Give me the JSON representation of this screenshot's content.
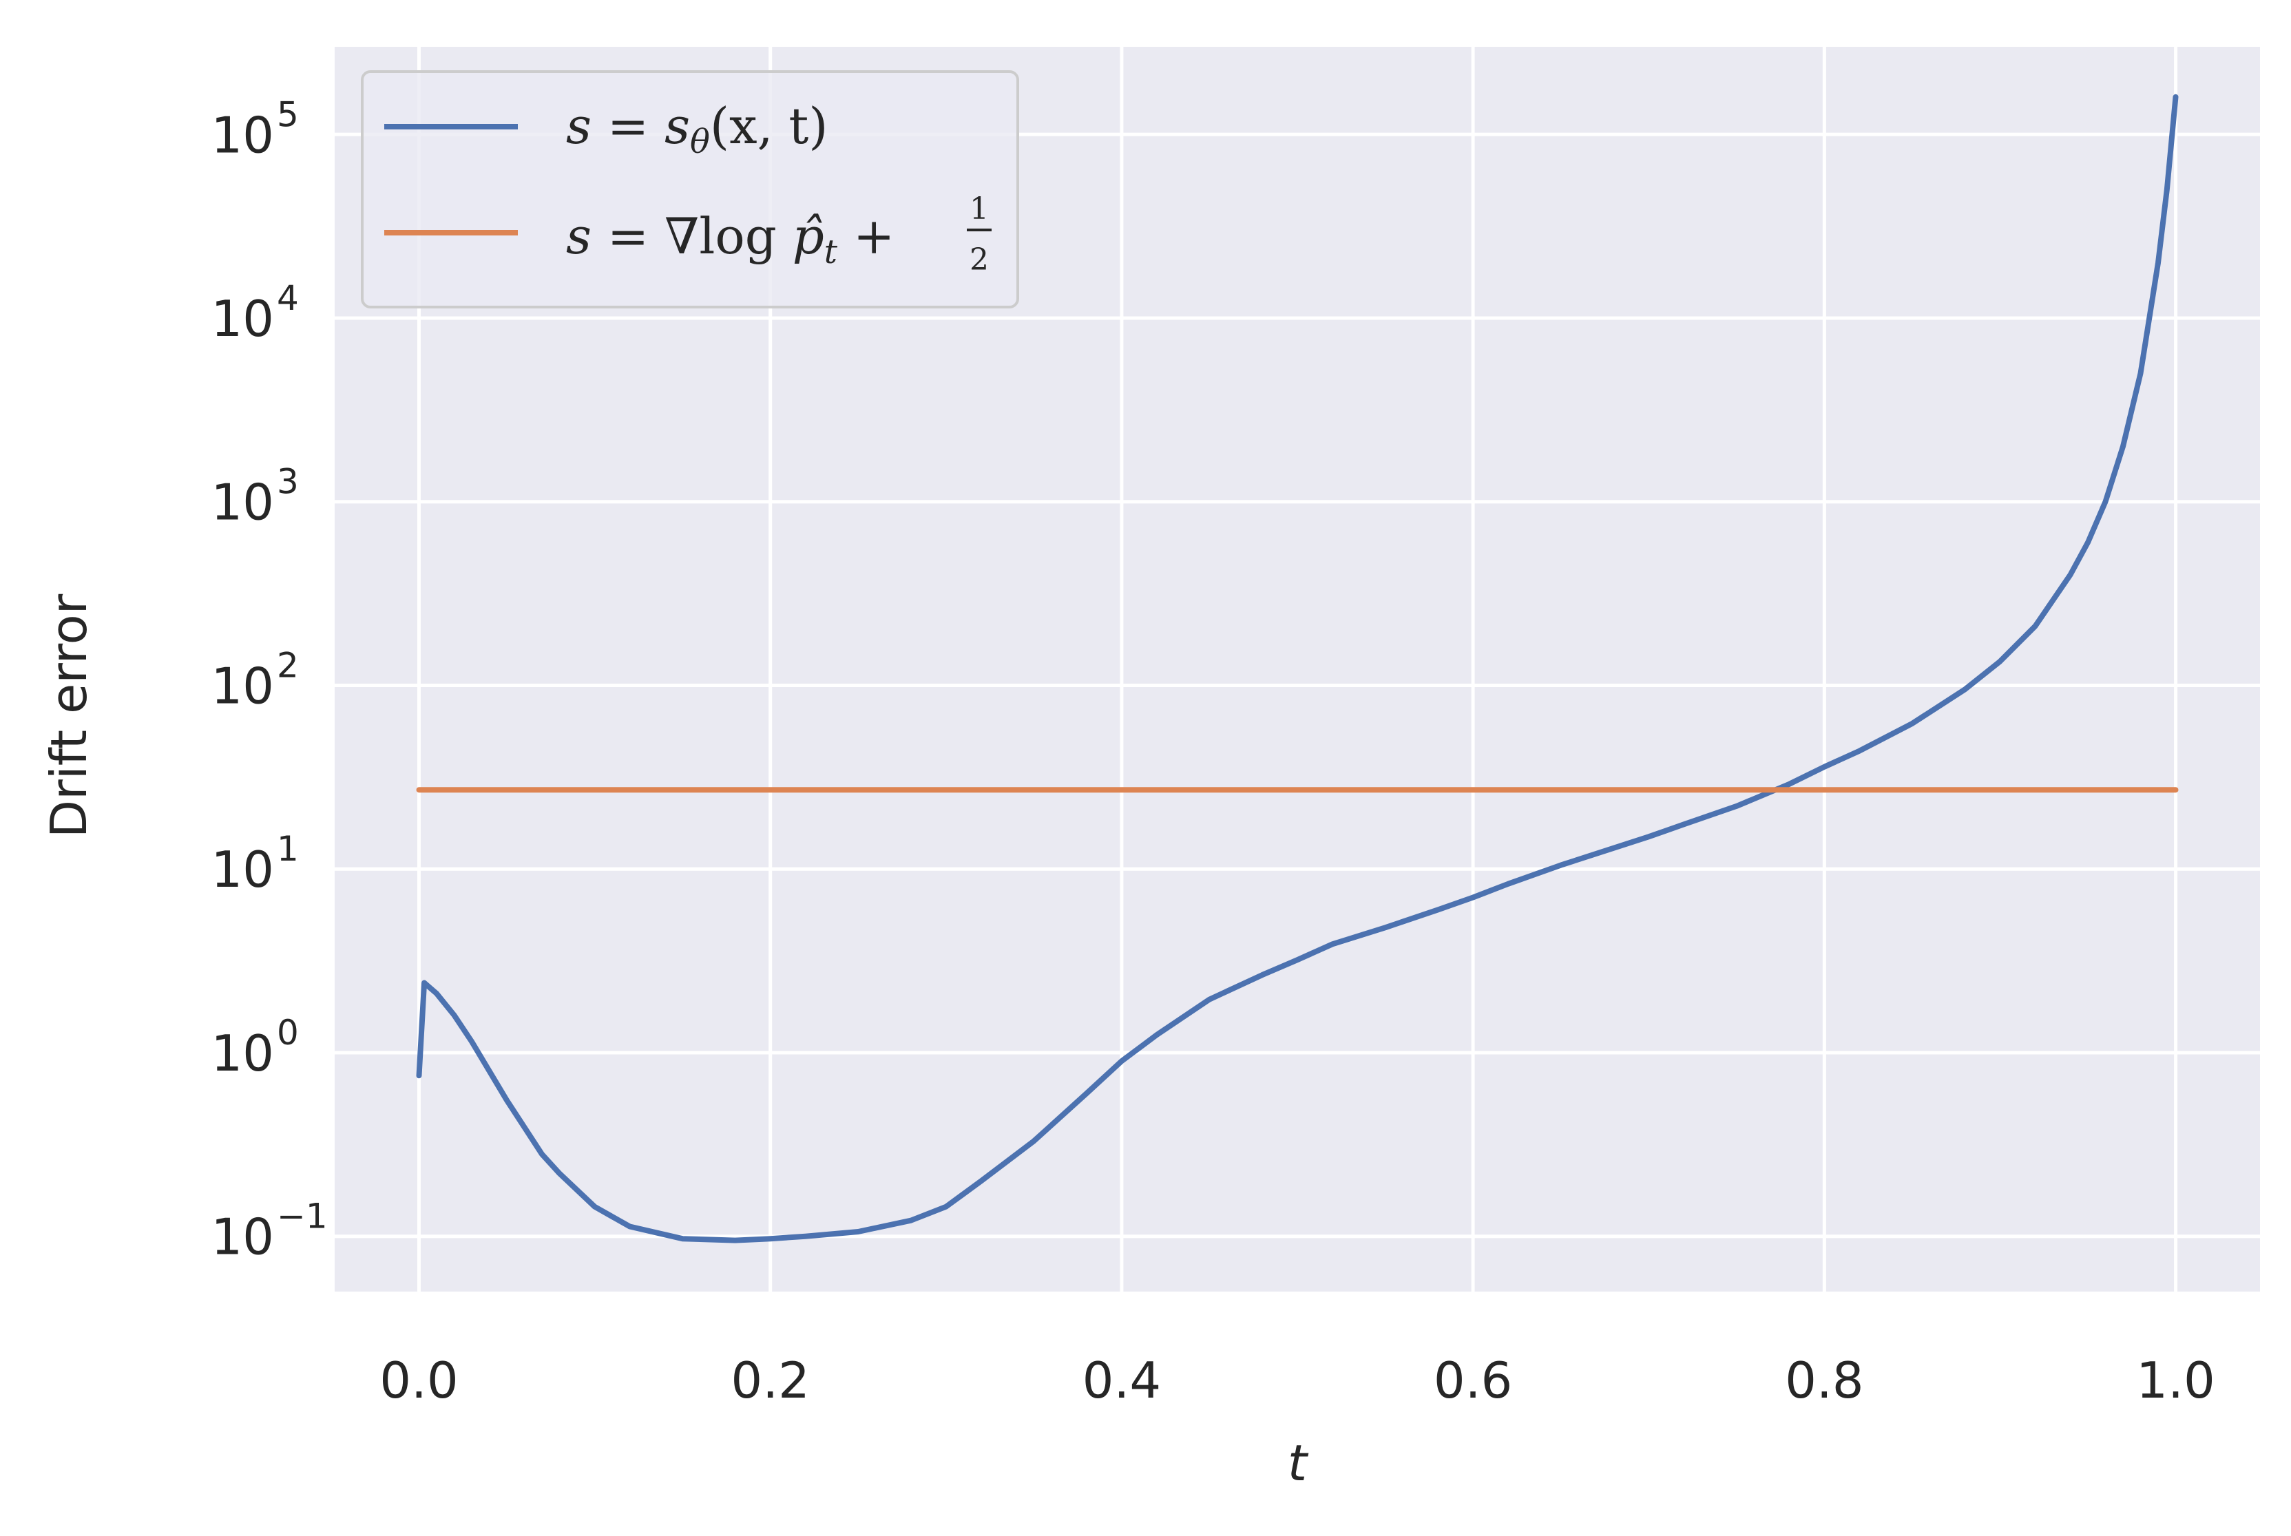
{
  "chart_data": {
    "type": "line",
    "xlabel": "t",
    "ylabel": "Drift error",
    "xlim": [
      -0.048,
      1.048
    ],
    "ylim": [
      0.05,
      300000
    ],
    "yscale": "log",
    "grid": true,
    "legend_position": "top-left",
    "x_ticks": [
      "0.0",
      "0.2",
      "0.4",
      "0.6",
      "0.8",
      "1.0"
    ],
    "y_ticks": [
      {
        "value": 0.1,
        "base": "10",
        "exp": "−1"
      },
      {
        "value": 1,
        "base": "10",
        "exp": "0"
      },
      {
        "value": 10,
        "base": "10",
        "exp": "1"
      },
      {
        "value": 100,
        "base": "10",
        "exp": "2"
      },
      {
        "value": 1000,
        "base": "10",
        "exp": "3"
      },
      {
        "value": 10000,
        "base": "10",
        "exp": "4"
      },
      {
        "value": 100000,
        "base": "10",
        "exp": "5"
      }
    ],
    "series": [
      {
        "name": "s = s_θ(x, t)",
        "color": "#4c72b0",
        "x": [
          0.0,
          0.003,
          0.01,
          0.02,
          0.03,
          0.05,
          0.07,
          0.08,
          0.1,
          0.12,
          0.15,
          0.18,
          0.2,
          0.22,
          0.25,
          0.28,
          0.3,
          0.32,
          0.35,
          0.38,
          0.4,
          0.42,
          0.45,
          0.48,
          0.5,
          0.52,
          0.55,
          0.58,
          0.6,
          0.62,
          0.65,
          0.68,
          0.7,
          0.72,
          0.75,
          0.78,
          0.8,
          0.82,
          0.85,
          0.88,
          0.9,
          0.92,
          0.94,
          0.95,
          0.96,
          0.97,
          0.98,
          0.99,
          0.995,
          1.0
        ],
        "y": [
          0.75,
          2.4,
          2.1,
          1.6,
          1.15,
          0.55,
          0.28,
          0.22,
          0.145,
          0.113,
          0.097,
          0.095,
          0.097,
          0.1,
          0.106,
          0.122,
          0.145,
          0.2,
          0.33,
          0.6,
          0.9,
          1.25,
          1.95,
          2.65,
          3.2,
          3.9,
          4.8,
          6.0,
          7.0,
          8.3,
          10.5,
          13.0,
          15.0,
          17.5,
          22.0,
          29.0,
          36.0,
          44.0,
          62.0,
          95.0,
          135.0,
          210.0,
          400.0,
          600.0,
          1000.0,
          2000.0,
          5000.0,
          20000.0,
          50000.0,
          160000.0
        ]
      },
      {
        "name": "s = ∇log p̂_t + 1/2",
        "color": "#dd8452",
        "x": [
          0.0,
          1.0
        ],
        "y": [
          27.0,
          27.0
        ]
      }
    ]
  },
  "legend": {
    "s1": {
      "s": "s",
      "eq": " = ",
      "s2": "s",
      "sub": "θ",
      "args": "(x, t)"
    },
    "s2": {
      "s": "s",
      "eq": " = ∇log ",
      "p": "p̂",
      "sub": "t",
      "plus": " + ",
      "num": "1",
      "den": "2"
    }
  }
}
